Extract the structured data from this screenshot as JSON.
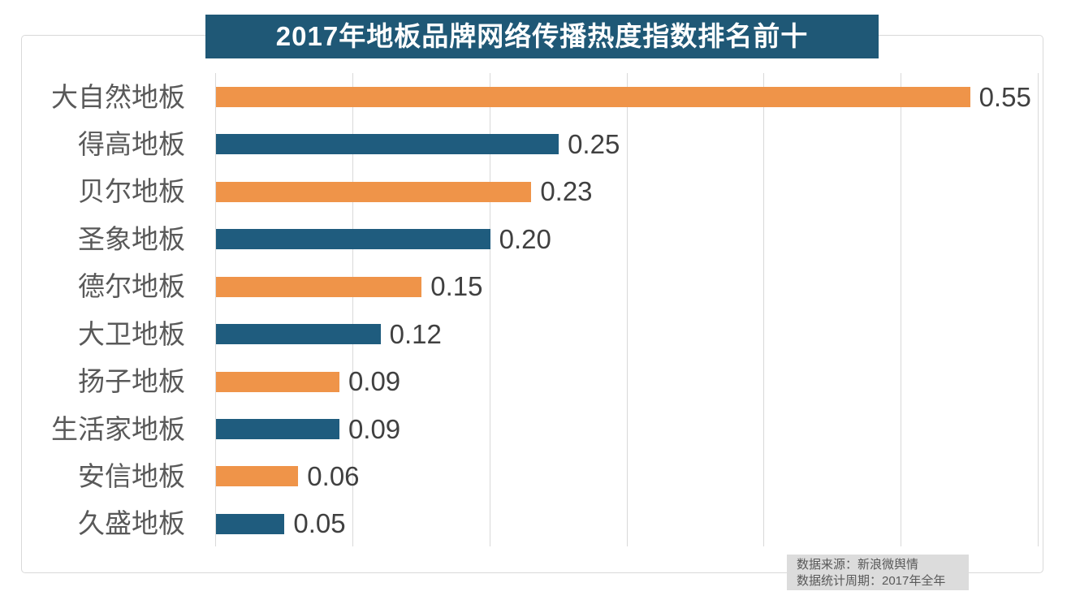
{
  "chart_data": {
    "type": "bar",
    "orientation": "horizontal",
    "title": "2017年地板品牌网络传播热度指数排名前十",
    "categories": [
      "大自然地板",
      "得高地板",
      "贝尔地板",
      "圣象地板",
      "德尔地板",
      "大卫地板",
      "扬子地板",
      "生活家地板",
      "安信地板",
      "久盛地板"
    ],
    "values": [
      0.55,
      0.25,
      0.23,
      0.2,
      0.15,
      0.12,
      0.09,
      0.09,
      0.06,
      0.05
    ],
    "value_labels": [
      "0.55",
      "0.25",
      "0.23",
      "0.20",
      "0.15",
      "0.12",
      "0.09",
      "0.09",
      "0.06",
      "0.05"
    ],
    "xlim": [
      0,
      0.6
    ],
    "gridline_interval": 0.1,
    "grid": "vertical-only",
    "legend": "none",
    "xlabel": "",
    "ylabel": "",
    "bar_palette": [
      "#ef9449",
      "#1f5c7e"
    ]
  },
  "source_note": {
    "line1": "数据来源：新浪微舆情",
    "line2": "数据统计周期：2017年全年"
  },
  "colors": {
    "banner_bg": "#1f5876",
    "banner_text": "#ffffff",
    "frame_border": "#d9d9d9",
    "gridline": "#d9d9d9",
    "category_text": "#595959",
    "value_text": "#404040",
    "note_bg": "#dcdcdc",
    "note_text": "#595959"
  }
}
